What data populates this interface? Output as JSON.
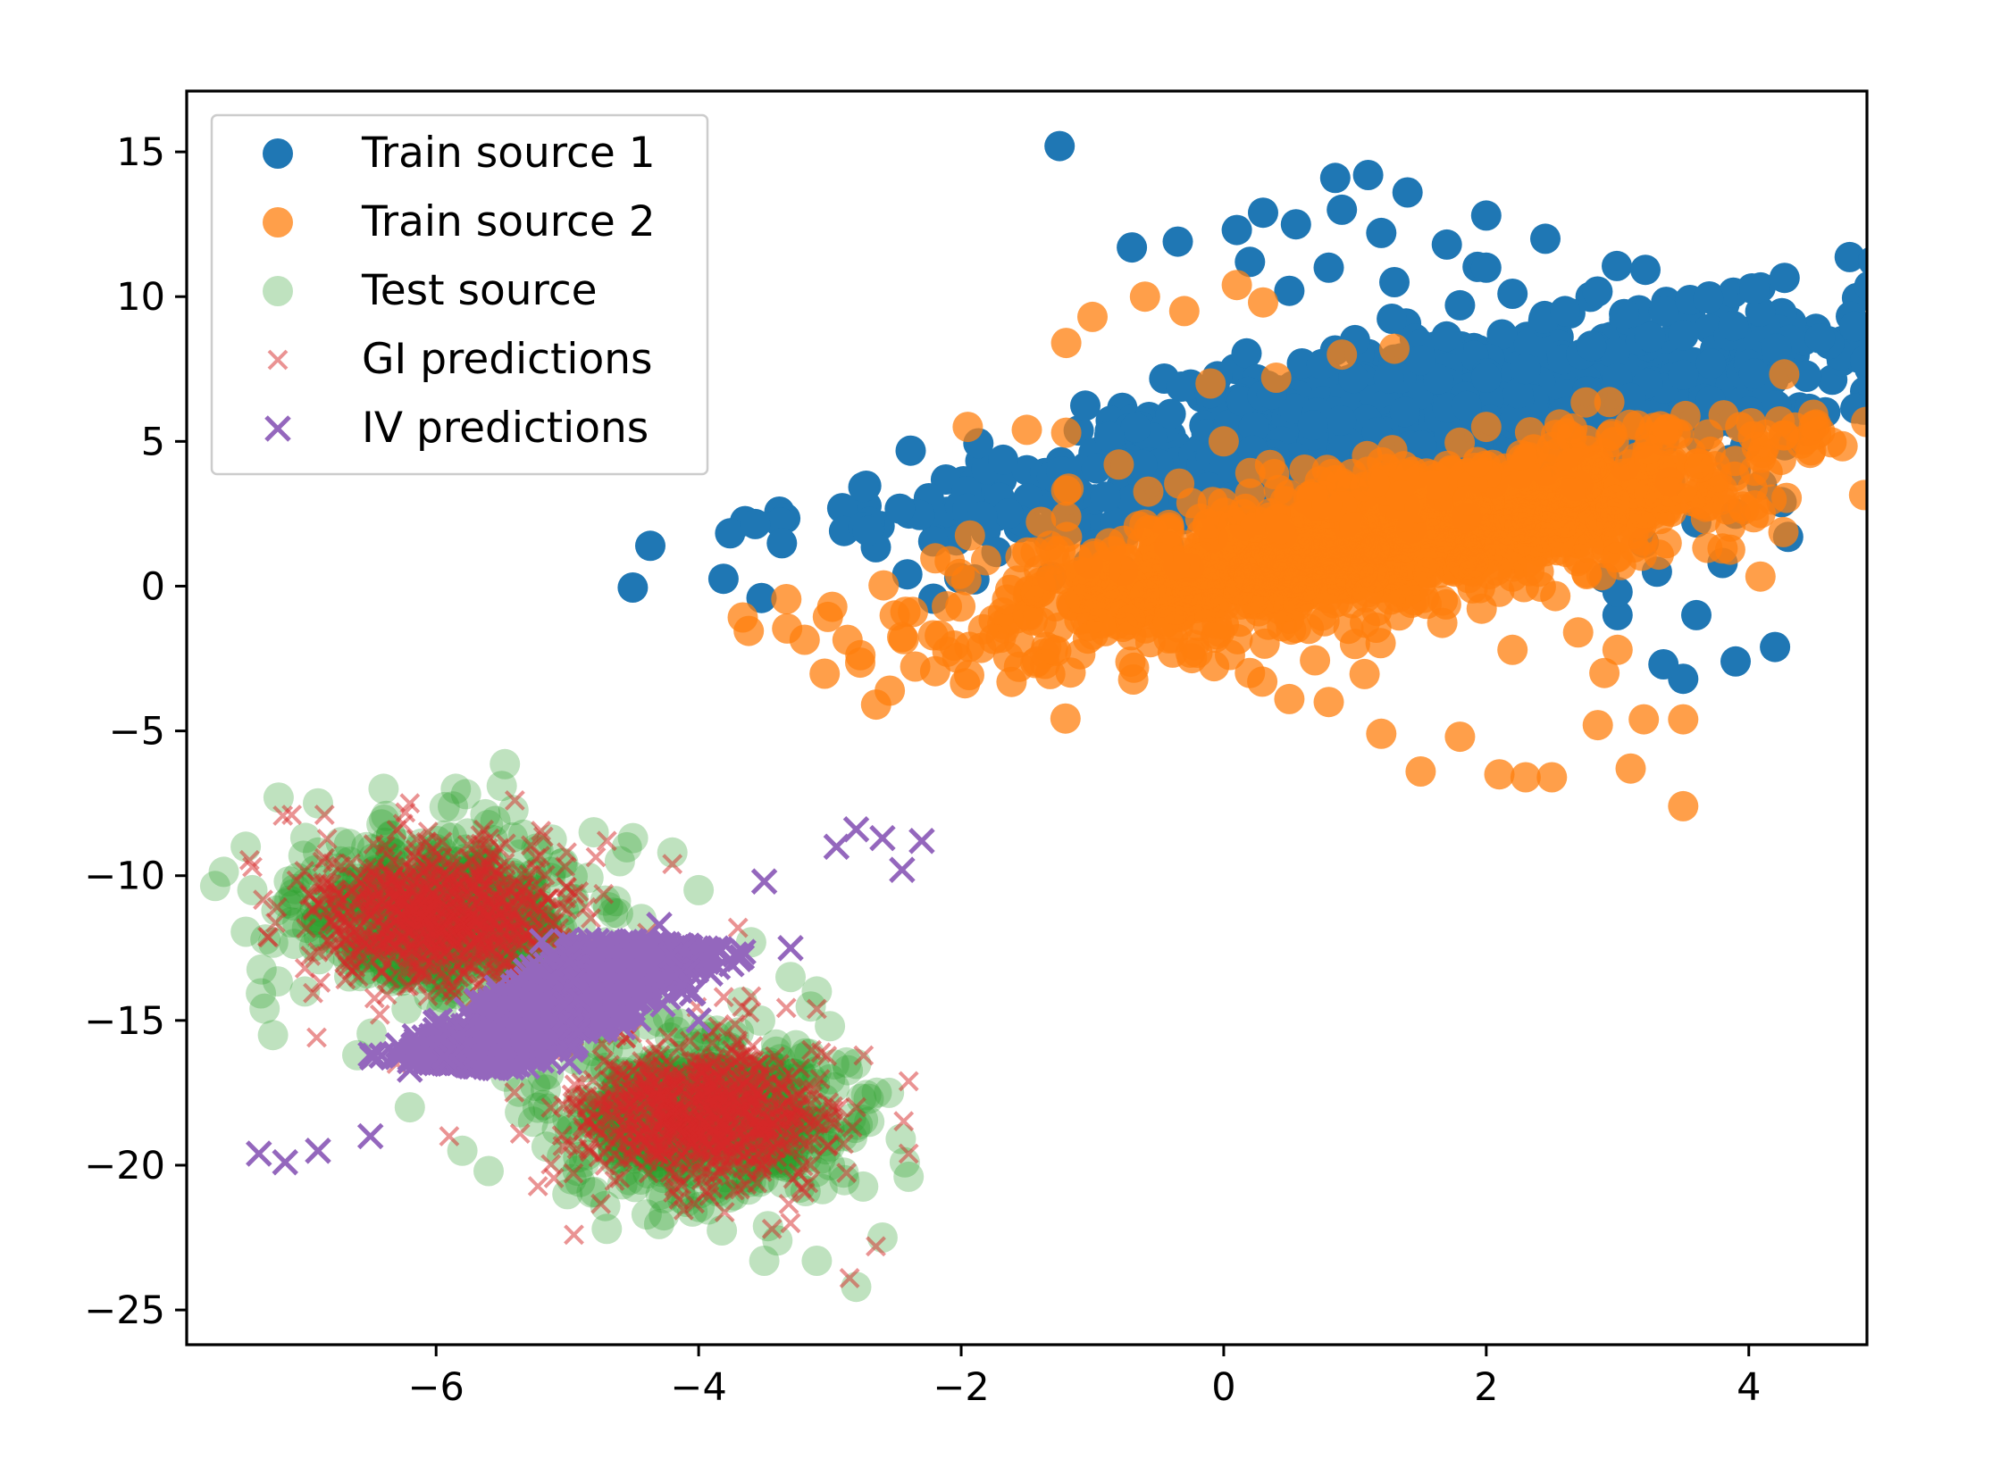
{
  "chart_data": {
    "type": "scatter",
    "title": "",
    "xlabel": "",
    "ylabel": "",
    "xlim": [
      -7.9,
      4.9
    ],
    "ylim": [
      -26.2,
      17.1
    ],
    "xticks": [
      {
        "value": -6,
        "label": "−6"
      },
      {
        "value": -4,
        "label": "−4"
      },
      {
        "value": -2,
        "label": "−2"
      },
      {
        "value": 0,
        "label": "0"
      },
      {
        "value": 2,
        "label": "2"
      },
      {
        "value": 4,
        "label": "4"
      }
    ],
    "yticks": [
      {
        "value": 15,
        "label": "15"
      },
      {
        "value": 10,
        "label": "10"
      },
      {
        "value": 5,
        "label": "5"
      },
      {
        "value": 0,
        "label": "0"
      },
      {
        "value": -5,
        "label": "−5"
      },
      {
        "value": -10,
        "label": "−10"
      },
      {
        "value": -15,
        "label": "−15"
      },
      {
        "value": -20,
        "label": "−20"
      },
      {
        "value": -25,
        "label": "−25"
      }
    ],
    "grid": false,
    "legend_position": "upper-left",
    "series": [
      {
        "name": "Train source 1",
        "marker": "circle",
        "color": "#1f77b4",
        "opacity": 1.0,
        "points": [
          [
            -1.25,
            15.2
          ],
          [
            -0.7,
            11.7
          ],
          [
            -0.35,
            11.9
          ],
          [
            0.1,
            12.3
          ],
          [
            0.3,
            12.9
          ],
          [
            0.55,
            12.5
          ],
          [
            0.85,
            14.1
          ],
          [
            1.1,
            14.2
          ],
          [
            1.4,
            13.6
          ],
          [
            0.9,
            13.0
          ],
          [
            2.0,
            12.8
          ],
          [
            2.45,
            12.0
          ],
          [
            3.05,
            9.4
          ],
          [
            3.25,
            8.6
          ],
          [
            3.5,
            7.3
          ],
          [
            3.7,
            5.5
          ],
          [
            3.9,
            4.0
          ],
          [
            4.1,
            3.5
          ],
          [
            4.25,
            2.9
          ],
          [
            4.3,
            1.7
          ],
          [
            4.2,
            -2.1
          ],
          [
            3.9,
            -2.6
          ],
          [
            3.5,
            -3.2
          ],
          [
            3.35,
            -2.7
          ],
          [
            3.6,
            -1.0
          ],
          [
            2.9,
            0.3
          ],
          [
            3.0,
            -1.0
          ],
          [
            3.3,
            0.5
          ],
          [
            3.2,
            1.5
          ],
          [
            2.7,
            3.5
          ],
          [
            2.4,
            5.3
          ],
          [
            2.3,
            7.5
          ],
          [
            1.8,
            9.7
          ],
          [
            1.3,
            10.5
          ],
          [
            0.8,
            11.0
          ],
          [
            0.5,
            10.2
          ],
          [
            1.0,
            8.5
          ],
          [
            1.5,
            7.8
          ],
          [
            2.0,
            7.2
          ],
          [
            2.6,
            6.0
          ],
          [
            3.0,
            4.8
          ],
          [
            3.4,
            3.6
          ],
          [
            1.7,
            11.8
          ],
          [
            2.2,
            10.1
          ],
          [
            2.8,
            8.3
          ],
          [
            3.6,
            2.2
          ],
          [
            3.0,
            -0.2
          ],
          [
            3.8,
            0.8
          ],
          [
            0.2,
            11.2
          ],
          [
            1.2,
            12.2
          ],
          [
            2.0,
            11.0
          ],
          [
            2.6,
            9.5
          ],
          [
            3.1,
            6.5
          ],
          [
            3.9,
            2.5
          ]
        ],
        "clouds": [
          {
            "cx": 1.75,
            "cy": 6.0,
            "rx": 1.9,
            "ry": 5.3,
            "angle": -43,
            "n": 1200,
            "seed": 11
          }
        ]
      },
      {
        "name": "Train source 2",
        "marker": "circle",
        "color": "#ff7f0e",
        "opacity": 0.75,
        "points": [
          [
            -1.95,
            5.5
          ],
          [
            -1.5,
            5.4
          ],
          [
            -1.2,
            5.3
          ],
          [
            -1.2,
            8.4
          ],
          [
            -1.0,
            9.3
          ],
          [
            -0.6,
            10.0
          ],
          [
            -0.3,
            9.5
          ],
          [
            0.1,
            10.4
          ],
          [
            0.3,
            9.8
          ],
          [
            -0.1,
            7.0
          ],
          [
            -1.2,
            3.3
          ],
          [
            -1.2,
            2.4
          ],
          [
            -0.6,
            -0.3
          ],
          [
            -0.2,
            -2.3
          ],
          [
            0.2,
            -3.0
          ],
          [
            0.5,
            -3.9
          ],
          [
            0.8,
            -4.0
          ],
          [
            1.2,
            -5.1
          ],
          [
            1.5,
            -6.4
          ],
          [
            1.8,
            -5.2
          ],
          [
            2.1,
            -6.5
          ],
          [
            2.3,
            -6.6
          ],
          [
            2.5,
            -6.6
          ],
          [
            2.85,
            -4.8
          ],
          [
            3.1,
            -6.3
          ],
          [
            3.2,
            -4.6
          ],
          [
            3.5,
            -4.6
          ],
          [
            3.5,
            -7.6
          ],
          [
            3.8,
            1.3
          ],
          [
            3.0,
            1.0
          ],
          [
            2.6,
            2.2
          ],
          [
            2.5,
            4.8
          ],
          [
            2.0,
            5.5
          ],
          [
            1.3,
            8.2
          ],
          [
            0.9,
            8.0
          ],
          [
            0.4,
            7.2
          ],
          [
            2.7,
            -1.6
          ],
          [
            2.9,
            -3.0
          ],
          [
            2.2,
            -2.2
          ],
          [
            1.0,
            -2.0
          ],
          [
            -0.5,
            1.0
          ],
          [
            -0.8,
            4.2
          ],
          [
            3.0,
            -2.2
          ],
          [
            2.4,
            0.5
          ],
          [
            1.6,
            3.5
          ],
          [
            0.0,
            5.0
          ]
        ],
        "clouds": [
          {
            "cx": 1.05,
            "cy": 1.5,
            "rx": 1.65,
            "ry": 4.4,
            "angle": -38,
            "n": 1400,
            "seed": 23
          }
        ]
      },
      {
        "name": "Test source",
        "marker": "circle",
        "color": "#2ca02c",
        "opacity": 0.3,
        "points": [
          [
            -7.2,
            -7.3
          ],
          [
            -6.9,
            -7.5
          ],
          [
            -7.45,
            -9.0
          ],
          [
            -7.3,
            -12.2
          ],
          [
            -6.4,
            -7.0
          ],
          [
            -5.85,
            -7.0
          ],
          [
            -5.5,
            -6.9
          ],
          [
            -4.8,
            -8.5
          ],
          [
            -4.5,
            -8.7
          ],
          [
            -4.2,
            -9.2
          ],
          [
            -4.0,
            -10.5
          ],
          [
            -3.6,
            -12.3
          ],
          [
            -3.1,
            -14.0
          ],
          [
            -3.0,
            -15.2
          ],
          [
            -2.8,
            -16.5
          ],
          [
            -2.7,
            -18.5
          ],
          [
            -2.55,
            -17.5
          ],
          [
            -2.4,
            -20.4
          ],
          [
            -2.6,
            -22.5
          ],
          [
            -2.8,
            -24.2
          ],
          [
            -3.1,
            -23.3
          ],
          [
            -3.4,
            -22.6
          ],
          [
            -3.5,
            -23.3
          ],
          [
            -4.7,
            -22.2
          ],
          [
            -5.8,
            -19.5
          ],
          [
            -6.2,
            -18.0
          ],
          [
            -6.6,
            -16.2
          ],
          [
            -7.0,
            -14.0
          ],
          [
            -7.4,
            -10.5
          ],
          [
            -5.0,
            -21.0
          ],
          [
            -3.0,
            -20.0
          ],
          [
            -2.9,
            -19.0
          ],
          [
            -6.9,
            -9.2
          ],
          [
            -4.6,
            -9.5
          ],
          [
            -3.3,
            -13.5
          ],
          [
            -5.6,
            -20.2
          ]
        ],
        "clouds": [
          {
            "cx": -5.95,
            "cy": -11.4,
            "rx": 1.05,
            "ry": 2.7,
            "angle": 0,
            "n": 650,
            "seed": 31
          },
          {
            "cx": -3.95,
            "cy": -18.3,
            "rx": 1.05,
            "ry": 2.7,
            "angle": 0,
            "n": 650,
            "seed": 37
          }
        ]
      },
      {
        "name": "GI predictions",
        "marker": "x",
        "color": "#d62728",
        "opacity": 0.5,
        "points": [
          [
            -7.1,
            -7.9
          ],
          [
            -6.85,
            -7.9
          ],
          [
            -7.4,
            -9.7
          ],
          [
            -6.2,
            -7.5
          ],
          [
            -5.4,
            -7.4
          ],
          [
            -4.7,
            -8.8
          ],
          [
            -4.2,
            -9.6
          ],
          [
            -3.7,
            -11.8
          ],
          [
            -2.4,
            -17.1
          ],
          [
            -2.4,
            -19.6
          ],
          [
            -2.65,
            -22.8
          ],
          [
            -2.85,
            -23.9
          ],
          [
            -4.95,
            -22.4
          ],
          [
            -6.3,
            -16.5
          ],
          [
            -7.0,
            -13.2
          ],
          [
            -3.1,
            -14.6
          ],
          [
            -2.8,
            -18.0
          ],
          [
            -3.3,
            -22.0
          ],
          [
            -5.9,
            -19.0
          ],
          [
            -6.8,
            -10.3
          ]
        ],
        "clouds": [
          {
            "cx": -5.95,
            "cy": -11.4,
            "rx": 0.95,
            "ry": 2.5,
            "angle": 0,
            "n": 700,
            "seed": 41
          },
          {
            "cx": -3.95,
            "cy": -18.3,
            "rx": 0.95,
            "ry": 2.5,
            "angle": 0,
            "n": 700,
            "seed": 47
          }
        ]
      },
      {
        "name": "IV predictions",
        "marker": "x",
        "color": "#9467bd",
        "opacity": 1.0,
        "points": [
          [
            -7.35,
            -19.6
          ],
          [
            -7.15,
            -19.9
          ],
          [
            -6.9,
            -19.5
          ],
          [
            -6.5,
            -19.0
          ],
          [
            -2.95,
            -9.0
          ],
          [
            -2.8,
            -8.4
          ],
          [
            -2.6,
            -8.7
          ],
          [
            -2.3,
            -8.8
          ],
          [
            -2.45,
            -9.8
          ],
          [
            -3.5,
            -10.2
          ],
          [
            -4.3,
            -11.7
          ],
          [
            -5.3,
            -14.2
          ],
          [
            -6.2,
            -16.7
          ],
          [
            -3.3,
            -12.5
          ],
          [
            -4.0,
            -15.0
          ]
        ],
        "clouds": [
          {
            "cx": -5.05,
            "cy": -14.45,
            "rx": 2.25,
            "ry": 0.55,
            "angle": 68.5,
            "n": 1600,
            "seed": 53,
            "band": true
          }
        ]
      }
    ]
  }
}
